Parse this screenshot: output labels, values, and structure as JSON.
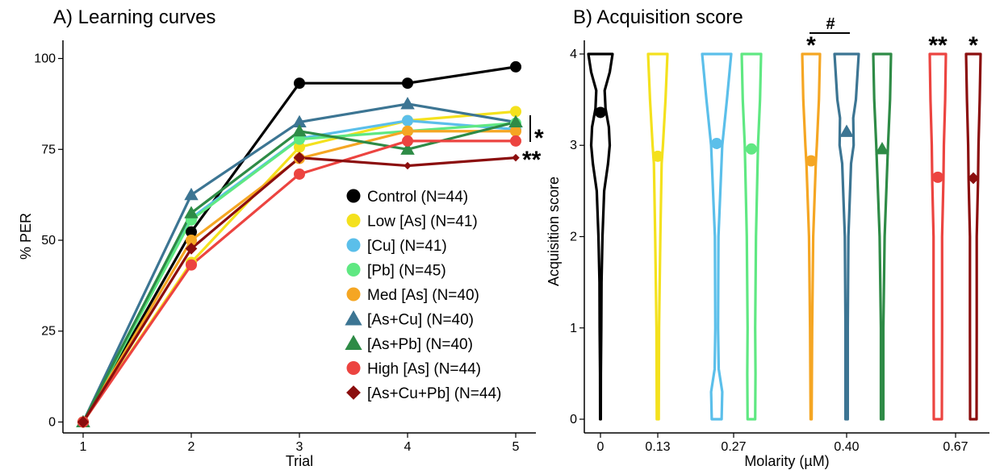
{
  "colors": {
    "control": "#000000",
    "low_as": "#f4e11d",
    "cu": "#5bbfea",
    "pb": "#5fe882",
    "med_as": "#f5a623",
    "as_cu": "#3c7593",
    "as_pb": "#2e8b46",
    "high_as": "#ec4440",
    "as_cu_pb": "#8b0e0e"
  },
  "chart_data": [
    {
      "type": "line",
      "title": "A) Learning curves",
      "xlabel": "Trial",
      "ylabel": "% PER",
      "x": [
        1,
        2,
        3,
        4,
        5
      ],
      "xlim": [
        0.8,
        5.1
      ],
      "ylim": [
        -3,
        105
      ],
      "yticks": [
        "0",
        "25",
        "50",
        "75",
        "100"
      ],
      "xticks": [
        "1",
        "2",
        "3",
        "4",
        "5"
      ],
      "grid": false,
      "legend_position": "bottom-right",
      "series": [
        {
          "name": "Control (N=44)",
          "key": "control",
          "shape": "circle",
          "values": [
            0,
            52.3,
            93.2,
            93.2,
            97.7
          ]
        },
        {
          "name": "Low [As] (N=41)",
          "key": "low_as",
          "shape": "circle",
          "values": [
            0,
            43.9,
            75.6,
            82.9,
            85.4
          ]
        },
        {
          "name": "[Cu] (N=41)",
          "key": "cu",
          "shape": "circle",
          "values": [
            0,
            56.1,
            78.0,
            82.9,
            80.5
          ]
        },
        {
          "name": "[Pb] (N=45)",
          "key": "pb",
          "shape": "circle",
          "values": [
            0,
            55.6,
            77.8,
            80.0,
            82.2
          ]
        },
        {
          "name": "Med [As] (N=40)",
          "key": "med_as",
          "shape": "circle",
          "values": [
            0,
            50.0,
            72.5,
            80.0,
            80.0
          ]
        },
        {
          "name": "[As+Cu] (N=40)",
          "key": "as_cu",
          "shape": "triangle",
          "values": [
            0,
            62.5,
            82.5,
            87.5,
            82.5
          ]
        },
        {
          "name": "[As+Pb] (N=40)",
          "key": "as_pb",
          "shape": "triangle",
          "values": [
            0,
            57.5,
            80.0,
            75.0,
            82.5
          ]
        },
        {
          "name": "High [As] (N=44)",
          "key": "high_as",
          "shape": "circle",
          "values": [
            0,
            43.2,
            68.2,
            77.3,
            77.3
          ]
        },
        {
          "name": "[As+Cu+Pb] (N=44)",
          "key": "as_cu_pb",
          "shape": "diamond",
          "values": [
            0,
            47.7,
            72.7,
            70.5,
            72.7
          ]
        }
      ],
      "annotations": [
        {
          "text": "*",
          "target": "Low [As] … [As+Pb] group at trial 5"
        },
        {
          "text": "**",
          "target": "High [As] and [As+Cu+Pb] at trial 5"
        }
      ]
    },
    {
      "type": "violin",
      "title": "B) Acquisition score",
      "xlabel": "Molarity (µM)",
      "ylabel": "Acquisition score",
      "ylim": [
        -0.15,
        4.15
      ],
      "yticks": [
        "0",
        "1",
        "2",
        "3",
        "4"
      ],
      "xticks": [
        "0",
        "0.13",
        "0.27",
        "0.40",
        "0.67"
      ],
      "groups": [
        {
          "key": "control",
          "molarity": "0",
          "mean": 3.36,
          "shape": "circle",
          "sig": "",
          "density": [
            [
              0,
              0.2
            ],
            [
              0.5,
              0.25
            ],
            [
              1.0,
              0.5
            ],
            [
              1.5,
              0.6
            ],
            [
              2.0,
              1.2
            ],
            [
              2.5,
              2.2
            ],
            [
              2.8,
              4.5
            ],
            [
              3.0,
              5.5
            ],
            [
              3.2,
              5.0
            ],
            [
              3.4,
              3.0
            ],
            [
              3.6,
              2.5
            ],
            [
              3.8,
              5.5
            ],
            [
              4.0,
              7.2
            ]
          ]
        },
        {
          "key": "low_as",
          "molarity": "0.13",
          "mean": 2.88,
          "shape": "circle",
          "sig": "",
          "density": [
            [
              0,
              0.3
            ],
            [
              1.0,
              0.4
            ],
            [
              2.0,
              0.8
            ],
            [
              2.8,
              1.2
            ],
            [
              3.0,
              1.6
            ],
            [
              3.5,
              2.4
            ],
            [
              4.0,
              3.0
            ]
          ]
        },
        {
          "key": "cu",
          "molarity": "0.27",
          "mean": 3.02,
          "shape": "circle",
          "sig": "",
          "density": [
            [
              0,
              2.2
            ],
            [
              0.3,
              2.5
            ],
            [
              0.55,
              0.9
            ],
            [
              1.0,
              0.6
            ],
            [
              2.0,
              0.8
            ],
            [
              3.0,
              2.5
            ],
            [
              3.5,
              4.6
            ],
            [
              4.0,
              6.5
            ]
          ]
        },
        {
          "key": "pb",
          "molarity": "0.27",
          "mean": 2.96,
          "shape": "circle",
          "sig": "",
          "density": [
            [
              0,
              1.5
            ],
            [
              0.5,
              1.6
            ],
            [
              1.0,
              1.5
            ],
            [
              2.0,
              1.8
            ],
            [
              3.0,
              2.6
            ],
            [
              3.5,
              3.4
            ],
            [
              4.0,
              3.8
            ]
          ]
        },
        {
          "key": "med_as",
          "molarity": "0.40",
          "mean": 2.83,
          "shape": "circle",
          "sig": "*",
          "density": [
            [
              0,
              0.2
            ],
            [
              1.0,
              0.4
            ],
            [
              2.0,
              0.8
            ],
            [
              2.8,
              1.8
            ],
            [
              3.0,
              2.2
            ],
            [
              3.5,
              3.0
            ],
            [
              4.0,
              3.4
            ]
          ]
        },
        {
          "key": "as_cu",
          "molarity": "0.40",
          "mean": 3.15,
          "shape": "triangle",
          "sig": "",
          "density": [
            [
              0,
              0.5
            ],
            [
              1.0,
              0.5
            ],
            [
              2.0,
              0.8
            ],
            [
              2.8,
              2.0
            ],
            [
              3.0,
              3.2
            ],
            [
              3.3,
              3.0
            ],
            [
              3.5,
              4.2
            ],
            [
              4.0,
              5.5
            ]
          ]
        },
        {
          "key": "as_pb",
          "molarity": "0.40",
          "mean": 2.96,
          "shape": "triangle",
          "sig": "",
          "density": [
            [
              0,
              0.5
            ],
            [
              1.0,
              0.5
            ],
            [
              2.0,
              1.0
            ],
            [
              3.0,
              2.4
            ],
            [
              3.5,
              3.2
            ],
            [
              4.0,
              3.6
            ]
          ]
        },
        {
          "key": "high_as",
          "molarity": "0.67",
          "mean": 2.65,
          "shape": "circle",
          "sig": "**",
          "density": [
            [
              0,
              1.6
            ],
            [
              1.0,
              1.7
            ],
            [
              2.0,
              1.7
            ],
            [
              2.6,
              2.2
            ],
            [
              3.0,
              2.4
            ],
            [
              3.5,
              2.9
            ],
            [
              4.0,
              3.2
            ]
          ]
        },
        {
          "key": "as_cu_pb",
          "molarity": "0.67",
          "mean": 2.64,
          "shape": "diamond",
          "sig": "*",
          "density": [
            [
              0,
              1.5
            ],
            [
              1.0,
              1.6
            ],
            [
              2.0,
              1.6
            ],
            [
              2.6,
              2.2
            ],
            [
              3.0,
              2.4
            ],
            [
              3.5,
              3.0
            ],
            [
              4.0,
              3.4
            ]
          ]
        }
      ],
      "bracket": {
        "text": "#",
        "from": "med_as",
        "to": "as_cu"
      }
    }
  ]
}
